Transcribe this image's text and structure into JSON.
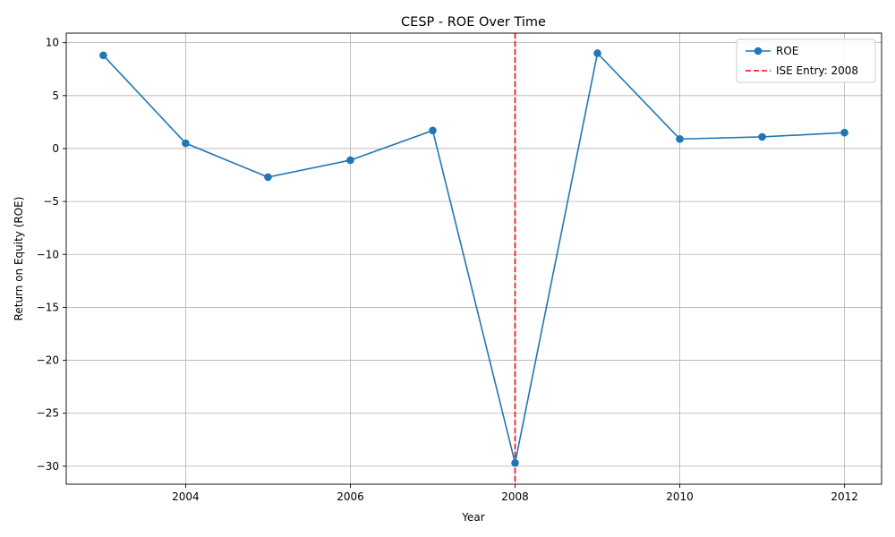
{
  "chart_data": {
    "type": "line",
    "title": "CESP - ROE Over Time",
    "xlabel": "Year",
    "ylabel": "Return on Equity (ROE)",
    "x": [
      2003,
      2004,
      2005,
      2006,
      2007,
      2008,
      2009,
      2010,
      2011,
      2012
    ],
    "xlim": [
      2002.55,
      2012.45
    ],
    "ylim": [
      -31.7,
      10.9
    ],
    "x_ticks": [
      2004,
      2006,
      2008,
      2010,
      2012
    ],
    "y_ticks": [
      10,
      5,
      0,
      -5,
      -10,
      -15,
      -20,
      -25,
      -30
    ],
    "grid": true,
    "legend_position": "top-right",
    "series": [
      {
        "name": "ROE",
        "color": "#1f77b4",
        "marker": "circle",
        "values": [
          8.8,
          0.5,
          -2.7,
          -1.1,
          1.7,
          -29.7,
          9.0,
          0.9,
          1.1,
          1.5
        ]
      }
    ],
    "annotations": [
      {
        "type": "vertical-line",
        "x": 2008,
        "label": "ISE Entry: 2008",
        "color": "#ff0000",
        "style": "dashed"
      }
    ]
  }
}
